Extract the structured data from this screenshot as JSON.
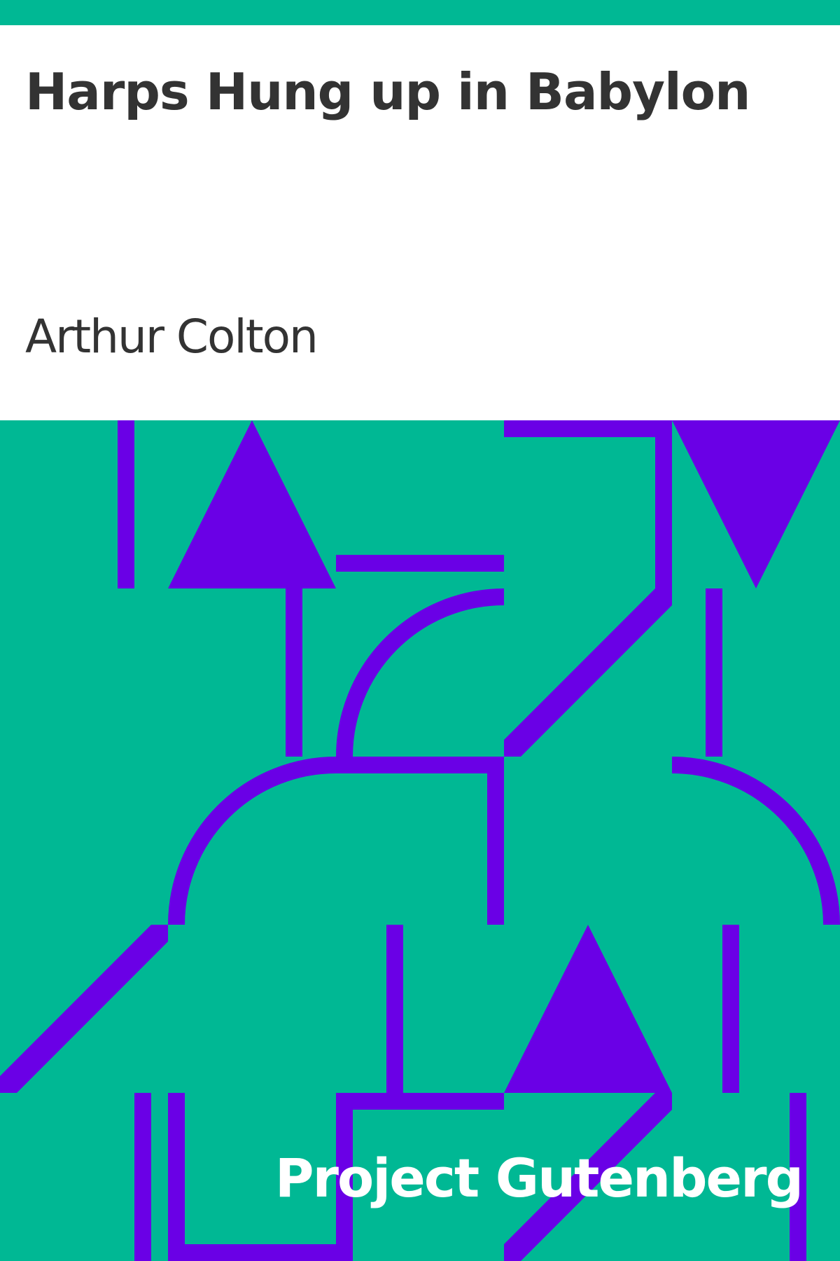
{
  "book": {
    "title": "Harps Hung up in Babylon",
    "author": "Arthur Colton"
  },
  "publisher": {
    "name": "Project Gutenberg"
  },
  "colors": {
    "background": "#ffffff",
    "accent_green": "#00b894",
    "pattern_purple": "#6a00e6",
    "text_dark": "#333333",
    "text_light": "#ffffff"
  }
}
